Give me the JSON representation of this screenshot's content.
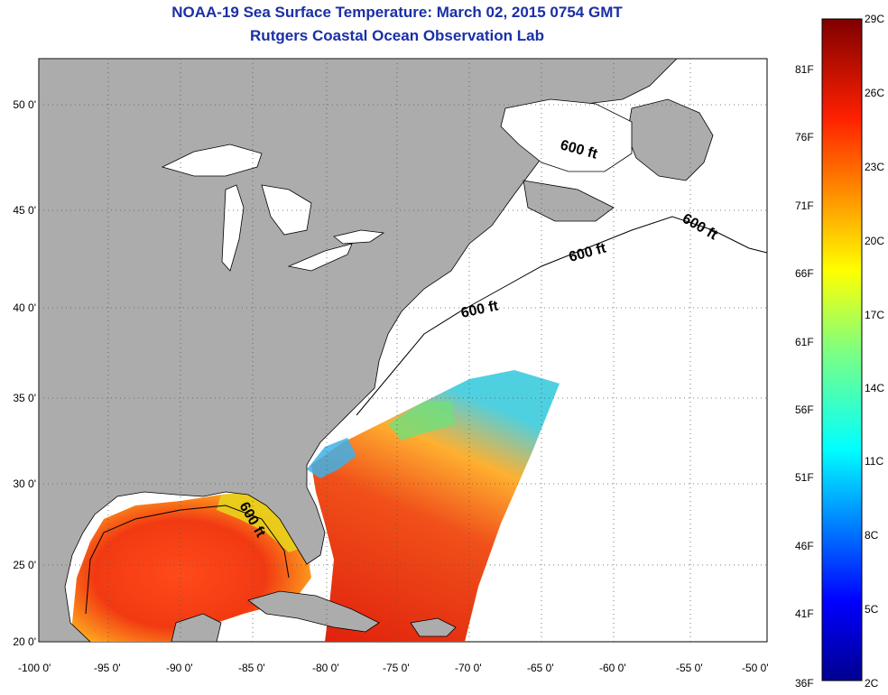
{
  "title": "NOAA-19 Sea Surface Temperature:  March 02, 2015 0754 GMT",
  "subtitle": "Rutgers Coastal Ocean Observation Lab",
  "lat_ticks": [
    "50 0'",
    "45 0'",
    "40 0'",
    "35 0'",
    "30 0'",
    "25 0'",
    "20 0'"
  ],
  "lon_ticks": [
    "-100 0'",
    "-95 0'",
    "-90 0'",
    "-85 0'",
    "-80 0'",
    "-75 0'",
    "-70 0'",
    "-65 0'",
    "-60 0'",
    "-55 0'",
    "-50 0'"
  ],
  "isobath_label": "600 ft",
  "colorbar": {
    "celsius": [
      "29C",
      "26C",
      "23C",
      "20C",
      "17C",
      "14C",
      "11C",
      "8C",
      "5C",
      "2C"
    ],
    "fahrenheit": [
      "81F",
      "76F",
      "71F",
      "66F",
      "61F",
      "56F",
      "51F",
      "46F",
      "41F",
      "36F"
    ]
  },
  "colors": {
    "land": "#acacac",
    "no_data": "#ffffff",
    "title": "#1a2fa6"
  }
}
